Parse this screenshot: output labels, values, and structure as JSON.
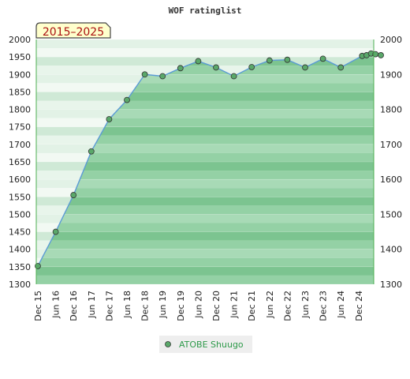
{
  "chart_data": {
    "type": "area",
    "title": "WOF ratinglist",
    "period_badge": "2015–2025",
    "ylim": [
      1300,
      2000
    ],
    "yticks": [
      1300,
      1350,
      1400,
      1450,
      1500,
      1550,
      1600,
      1650,
      1700,
      1750,
      1800,
      1850,
      1900,
      1950,
      2000
    ],
    "yticks_right": [
      1300,
      1400,
      1500,
      1600,
      1700,
      1800,
      1900,
      2000
    ],
    "xticks": [
      "Dec 15",
      "Jun 16",
      "Dec 16",
      "Jun 17",
      "Dec 17",
      "Jun 18",
      "Dec 18",
      "Jun 19",
      "Dec 19",
      "Jun 20",
      "Dec 20",
      "Jun 21",
      "Dec 21",
      "Jun 22",
      "Dec 22",
      "Jun 23",
      "Dec 23",
      "Jun 24",
      "Dec 24"
    ],
    "grid": true,
    "legend_position": "bottom-center",
    "colors": {
      "line": "#5b9bd5",
      "marker": "#5aa86a",
      "area_dark": "#7cc490",
      "area_light": "#a8dab6",
      "legend_text": "#2e9a4a"
    },
    "series": [
      {
        "name": "ATOBE Shuugo",
        "x": [
          "Dec 15",
          "Jun 16",
          "Dec 16",
          "Jun 17",
          "Dec 17",
          "Jun 18",
          "Dec 18",
          "Jun 19",
          "Dec 19",
          "Jun 20",
          "Dec 20",
          "Jun 21",
          "Dec 21",
          "Jun 22",
          "Dec 22",
          "Jun 23",
          "Dec 23",
          "Jun 24",
          "Sep 24",
          "Oct 24",
          "Nov 24",
          "Dec 24",
          "Jan 25"
        ],
        "x_index": [
          0,
          1,
          2,
          3,
          4,
          5,
          6,
          7,
          8,
          9,
          10,
          11,
          12,
          13,
          14,
          15,
          16,
          17,
          18.2,
          18.45,
          18.7,
          18.95,
          19.25
        ],
        "values": [
          1352,
          1450,
          1555,
          1680,
          1772,
          1827,
          1900,
          1895,
          1918,
          1938,
          1920,
          1895,
          1921,
          1940,
          1942,
          1920,
          1945,
          1920,
          1953,
          1955,
          1960,
          1958,
          1955
        ]
      }
    ]
  }
}
